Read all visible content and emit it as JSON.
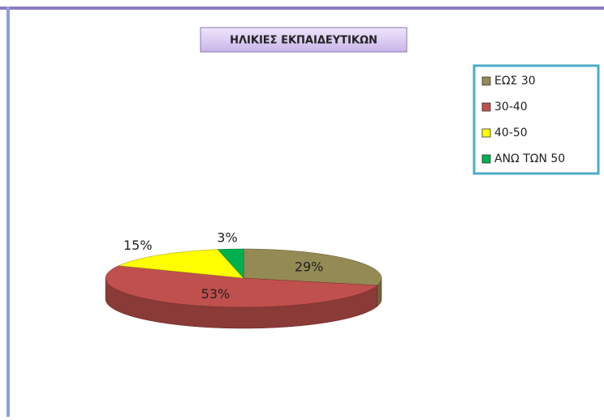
{
  "chart_data": {
    "type": "pie",
    "title": "ΗΛΙΚΙΕΣ ΕΚΠΑΙΔΕΥΤΙΚΩΝ",
    "categories": [
      "ΕΩΣ 30",
      "30-40",
      "40-50",
      "ΑΝΩ ΤΩΝ 50"
    ],
    "values": [
      29,
      53,
      15,
      3
    ],
    "value_labels": [
      "29%",
      "53%",
      "15%",
      "3%"
    ],
    "colors": [
      "#948a54",
      "#c0504d",
      "#ffff00",
      "#00b050"
    ],
    "legend": "top-right"
  }
}
